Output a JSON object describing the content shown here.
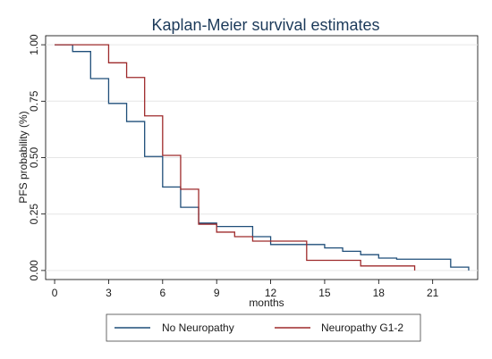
{
  "chart_data": {
    "type": "line",
    "step": true,
    "title": "Kaplan-Meier survival estimates",
    "xlabel": "months",
    "ylabel": "PFS probability (%)",
    "xlim": [
      -0.5,
      23.5
    ],
    "ylim": [
      -0.04,
      1.04
    ],
    "x_ticks": [
      0,
      3,
      6,
      9,
      12,
      15,
      18,
      21
    ],
    "x_tick_labels": [
      "0",
      "3",
      "6",
      "9",
      "12",
      "15",
      "18",
      "21"
    ],
    "y_ticks": [
      0,
      0.25,
      0.5,
      0.75,
      1
    ],
    "y_tick_labels": [
      "0.00",
      "0.25",
      "0.50",
      "0.75",
      "1.00"
    ],
    "grid": true,
    "legend_position": "bottom",
    "series": [
      {
        "name": "No Neuropathy",
        "color": "#1f4e79",
        "x": [
          0,
          1,
          2,
          3,
          4,
          5,
          6,
          7,
          8,
          9,
          11,
          12,
          15,
          16,
          17,
          18,
          19,
          22,
          23
        ],
        "y": [
          1.0,
          0.97,
          0.85,
          0.74,
          0.66,
          0.505,
          0.37,
          0.28,
          0.21,
          0.195,
          0.15,
          0.115,
          0.1,
          0.085,
          0.07,
          0.055,
          0.05,
          0.015,
          0.0
        ]
      },
      {
        "name": "Neuropathy G1-2",
        "color": "#9e2a2b",
        "x": [
          0,
          3,
          4,
          5,
          6,
          7,
          8,
          9,
          10,
          11,
          14,
          17,
          20
        ],
        "y": [
          1.0,
          0.92,
          0.855,
          0.685,
          0.51,
          0.36,
          0.205,
          0.17,
          0.15,
          0.13,
          0.045,
          0.02,
          0.0
        ]
      }
    ]
  }
}
